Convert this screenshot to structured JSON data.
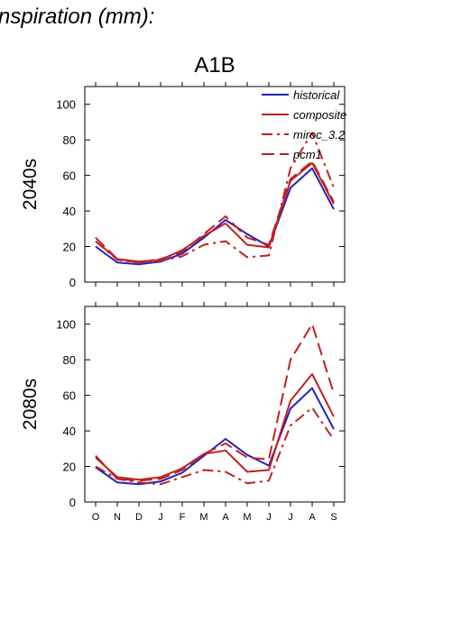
{
  "header": {
    "title": "nspiration (mm):",
    "scenario": "A1B"
  },
  "colors": {
    "historical": "#2222bb",
    "model": "#c02020"
  },
  "chart_data": [
    {
      "type": "line",
      "panel_label": "2040s",
      "categories": [
        "O",
        "N",
        "D",
        "J",
        "F",
        "M",
        "A",
        "M",
        "J",
        "J",
        "A",
        "S"
      ],
      "ylim": [
        0,
        110
      ],
      "yticks": [
        0,
        20,
        40,
        60,
        80,
        100
      ],
      "legend_position": "top-right",
      "series": [
        {
          "name": "historical",
          "style": "solid",
          "color": "#2222bb",
          "values": [
            20,
            11,
            10,
            11.5,
            16,
            25,
            35,
            27,
            20,
            53,
            64,
            41
          ]
        },
        {
          "name": "composite",
          "style": "solid",
          "color": "#c02020",
          "values": [
            23,
            13,
            11.5,
            12.5,
            18,
            26,
            33,
            21,
            19.5,
            57,
            67,
            44
          ]
        },
        {
          "name": "miroc_3.2",
          "style": "dashdot",
          "color": "#c02020",
          "values": [
            23,
            12.5,
            11,
            12,
            14.5,
            21,
            23,
            14,
            15,
            64,
            84,
            53
          ]
        },
        {
          "name": "pcm1",
          "style": "dashed",
          "color": "#c02020",
          "values": [
            25,
            13,
            11,
            13,
            17,
            27,
            37,
            25,
            21,
            58,
            68,
            45
          ]
        }
      ]
    },
    {
      "type": "line",
      "panel_label": "2080s",
      "categories": [
        "O",
        "N",
        "D",
        "J",
        "F",
        "M",
        "A",
        "M",
        "J",
        "J",
        "A",
        "S"
      ],
      "ylim": [
        0,
        110
      ],
      "yticks": [
        0,
        20,
        40,
        60,
        80,
        100
      ],
      "series": [
        {
          "name": "historical",
          "style": "solid",
          "color": "#2222bb",
          "values": [
            19.5,
            11,
            10,
            11.5,
            16.5,
            26,
            35.5,
            26.5,
            20.5,
            52.5,
            64,
            41
          ]
        },
        {
          "name": "composite",
          "style": "solid",
          "color": "#c02020",
          "values": [
            25,
            14,
            12.5,
            14,
            19,
            27,
            29,
            17,
            18,
            57,
            72,
            48
          ]
        },
        {
          "name": "miroc_3.2",
          "style": "dashdot",
          "color": "#c02020",
          "values": [
            20,
            13,
            11,
            10,
            14,
            18,
            17,
            10.5,
            12,
            43,
            53,
            35
          ]
        },
        {
          "name": "pcm1",
          "style": "dashed",
          "color": "#c02020",
          "values": [
            26,
            13,
            12,
            13,
            18,
            27,
            33,
            25,
            24,
            80,
            100,
            61
          ]
        }
      ]
    }
  ]
}
